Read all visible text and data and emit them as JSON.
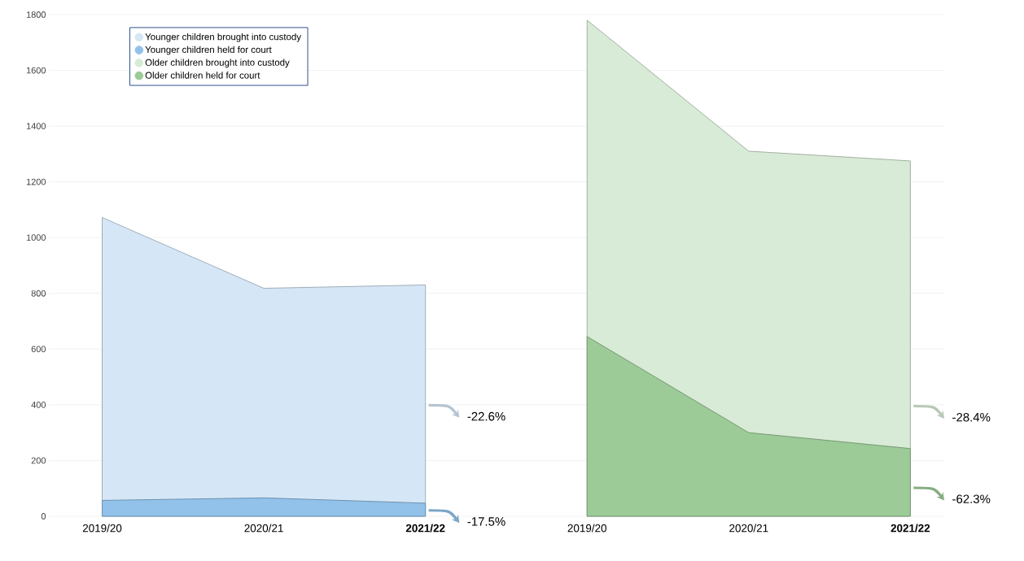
{
  "chart_data": {
    "type": "area",
    "categories": [
      "2019/20",
      "2020/21",
      "**2021/22**",
      "2019/20",
      "2020/21",
      "**2021/22**"
    ],
    "series": [
      {
        "name": "Younger children brought into custody",
        "color": "#d5e7f6",
        "values": [
          1072,
          818,
          830,
          null,
          null,
          null
        ]
      },
      {
        "name": "Younger children held for court",
        "color": "#92c2ea",
        "values": [
          57,
          66,
          47,
          null,
          null,
          null
        ]
      },
      {
        "name": "Older children brought into custody",
        "color": "#d8ebd6",
        "values": [
          null,
          null,
          null,
          1780,
          1310,
          1275
        ]
      },
      {
        "name": "Older children held for court",
        "color": "#9ccb98",
        "values": [
          null,
          null,
          null,
          645,
          300,
          243
        ]
      }
    ],
    "ylim": [
      0,
      1800
    ],
    "yticks": [
      0,
      200,
      400,
      600,
      800,
      1000,
      1200,
      1400,
      1600,
      1800
    ],
    "grid": "y",
    "legend": "top left",
    "marker": "none",
    "annotations": [
      "-22.6%",
      "-17.5%",
      "-28.4%",
      "-62.3%"
    ]
  }
}
